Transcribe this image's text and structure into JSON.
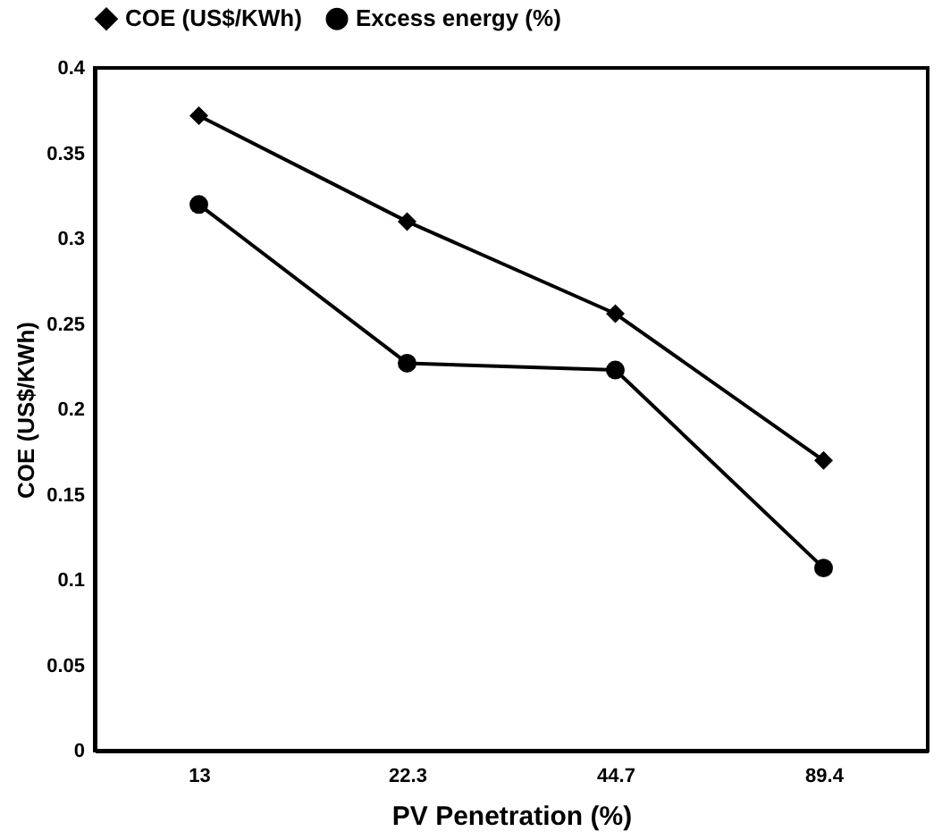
{
  "chart_data": {
    "type": "line",
    "xlabel": "PV Penetration (%)",
    "ylabel": "COE (US$/KWh)",
    "categories": [
      "13",
      "22.3",
      "44.7",
      "89.4"
    ],
    "series": [
      {
        "name": "COE (US$/KWh)",
        "color": "#000000",
        "marker": "diamond",
        "values": [
          0.372,
          0.31,
          0.256,
          0.17
        ]
      },
      {
        "name": "Excess energy (%)",
        "color": "#000000",
        "marker": "circle",
        "values": [
          0.32,
          0.227,
          0.223,
          0.107
        ]
      }
    ],
    "ylim": [
      0,
      0.4
    ],
    "yticks": [
      0,
      0.05,
      0.1,
      0.15,
      0.2,
      0.25,
      0.3,
      0.35,
      0.4
    ],
    "grid": false,
    "legend": "top",
    "line_style": "solid"
  }
}
